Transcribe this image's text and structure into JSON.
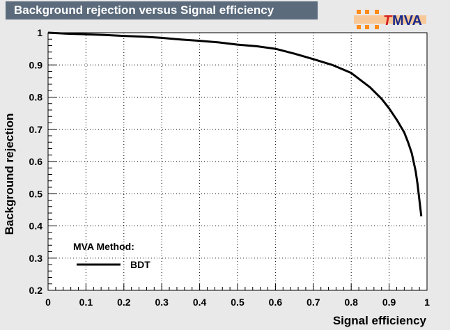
{
  "title": "Background rejection versus Signal efficiency",
  "logo": {
    "text_t": "T",
    "text_mva": "MVA",
    "accent": "#e36c09",
    "text_color": "#d62020"
  },
  "legend": {
    "header": "MVA Method:",
    "entries": [
      "BDT"
    ]
  },
  "colors": {
    "background": "#e9e9e9",
    "frame": "#ffffff",
    "title_box": "#5b6b7c",
    "line": "#000000",
    "grid": "#000000"
  },
  "chart_data": {
    "type": "line",
    "title": "Background rejection versus Signal efficiency",
    "xlabel": "Signal efficiency",
    "ylabel": "Background rejection",
    "xlim": [
      0,
      1
    ],
    "ylim": [
      0.2,
      1
    ],
    "xticks": [
      "0",
      "0.1",
      "0.2",
      "0.3",
      "0.4",
      "0.5",
      "0.6",
      "0.7",
      "0.8",
      "0.9",
      "1"
    ],
    "yticks": [
      "0.2",
      "0.3",
      "0.4",
      "0.5",
      "0.6",
      "0.7",
      "0.8",
      "0.9",
      "1"
    ],
    "grid": true,
    "legend_position": "bottom-left",
    "series": [
      {
        "name": "BDT",
        "x": [
          0.0,
          0.05,
          0.1,
          0.15,
          0.2,
          0.25,
          0.3,
          0.35,
          0.4,
          0.45,
          0.5,
          0.55,
          0.6,
          0.65,
          0.7,
          0.75,
          0.8,
          0.85,
          0.88,
          0.9,
          0.92,
          0.94,
          0.95,
          0.96,
          0.97,
          0.975,
          0.98,
          0.985
        ],
        "y": [
          1.0,
          0.997,
          0.995,
          0.993,
          0.99,
          0.988,
          0.984,
          0.979,
          0.975,
          0.97,
          0.963,
          0.958,
          0.95,
          0.935,
          0.918,
          0.9,
          0.875,
          0.83,
          0.795,
          0.765,
          0.73,
          0.69,
          0.66,
          0.625,
          0.57,
          0.53,
          0.48,
          0.43
        ]
      }
    ]
  }
}
